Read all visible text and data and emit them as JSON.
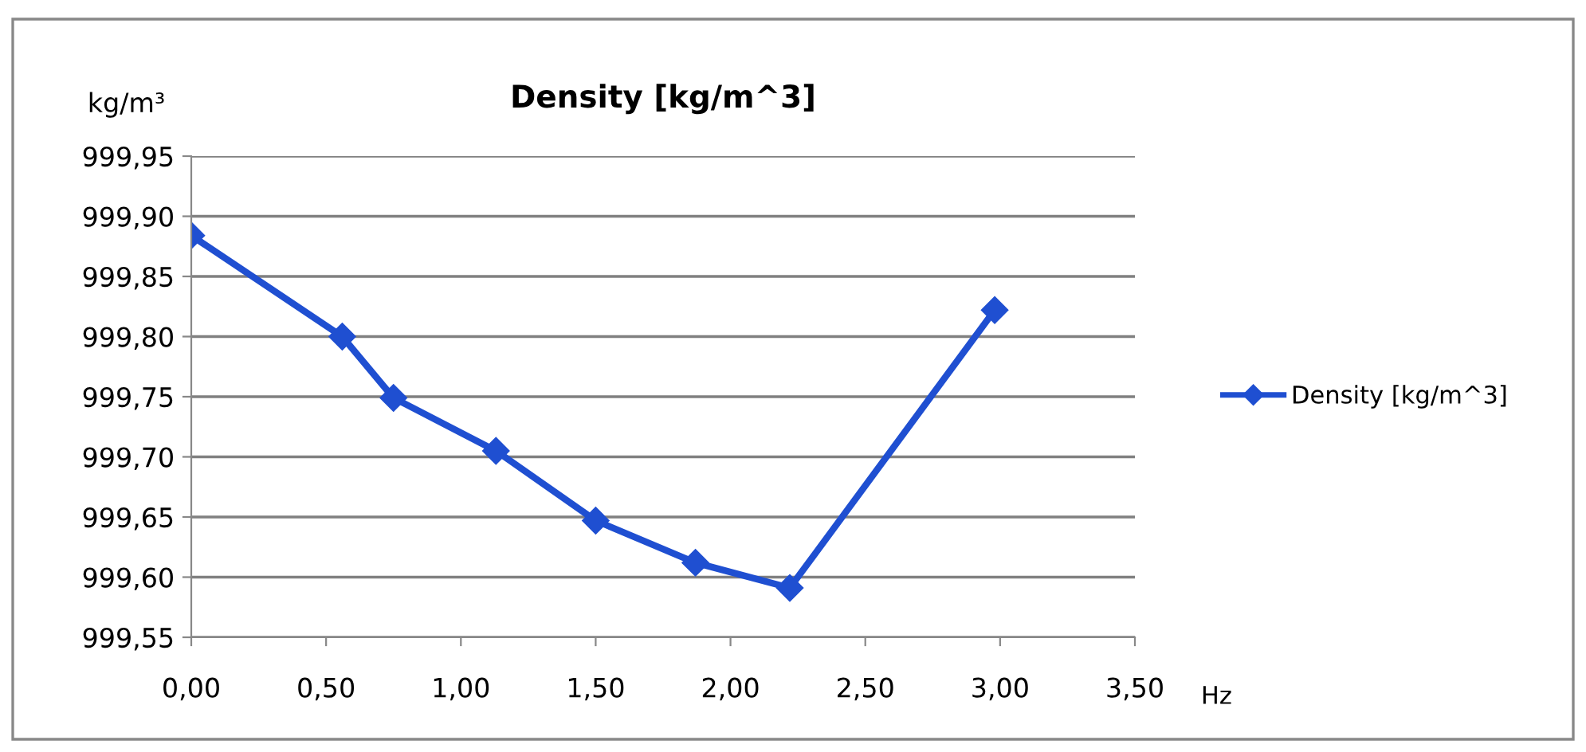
{
  "chart_data": {
    "type": "line",
    "title": "Density [kg/m^3]",
    "ylabel": "kg/m³",
    "xlabel": "Hz",
    "x": [
      0.0,
      0.56,
      0.75,
      1.13,
      1.5,
      1.87,
      2.22,
      2.98
    ],
    "series": [
      {
        "name": "Density [kg/m^3]",
        "color": "#1f4fd1",
        "values": [
          999.884,
          999.8,
          999.749,
          999.705,
          999.647,
          999.612,
          999.591,
          999.822
        ]
      }
    ],
    "xlim": [
      0,
      3.5
    ],
    "ylim": [
      999.55,
      999.95
    ],
    "xticks": [
      {
        "value": 0,
        "label": "0,00"
      },
      {
        "value": 0.5,
        "label": "0,50"
      },
      {
        "value": 1.0,
        "label": "1,00"
      },
      {
        "value": 1.5,
        "label": "1,50"
      },
      {
        "value": 2.0,
        "label": "2,00"
      },
      {
        "value": 2.5,
        "label": "2,50"
      },
      {
        "value": 3.0,
        "label": "3,00"
      },
      {
        "value": 3.5,
        "label": "3,50"
      }
    ],
    "yticks": [
      {
        "value": 999.55,
        "label": "999,55"
      },
      {
        "value": 999.6,
        "label": "999,60"
      },
      {
        "value": 999.65,
        "label": "999,65"
      },
      {
        "value": 999.7,
        "label": "999,70"
      },
      {
        "value": 999.75,
        "label": "999,75"
      },
      {
        "value": 999.8,
        "label": "999,80"
      },
      {
        "value": 999.85,
        "label": "999,85"
      },
      {
        "value": 999.9,
        "label": "999,90"
      },
      {
        "value": 999.95,
        "label": "999,95"
      }
    ],
    "grid": "y",
    "legend": "right",
    "marker": "diamond",
    "line_style": "solid"
  }
}
